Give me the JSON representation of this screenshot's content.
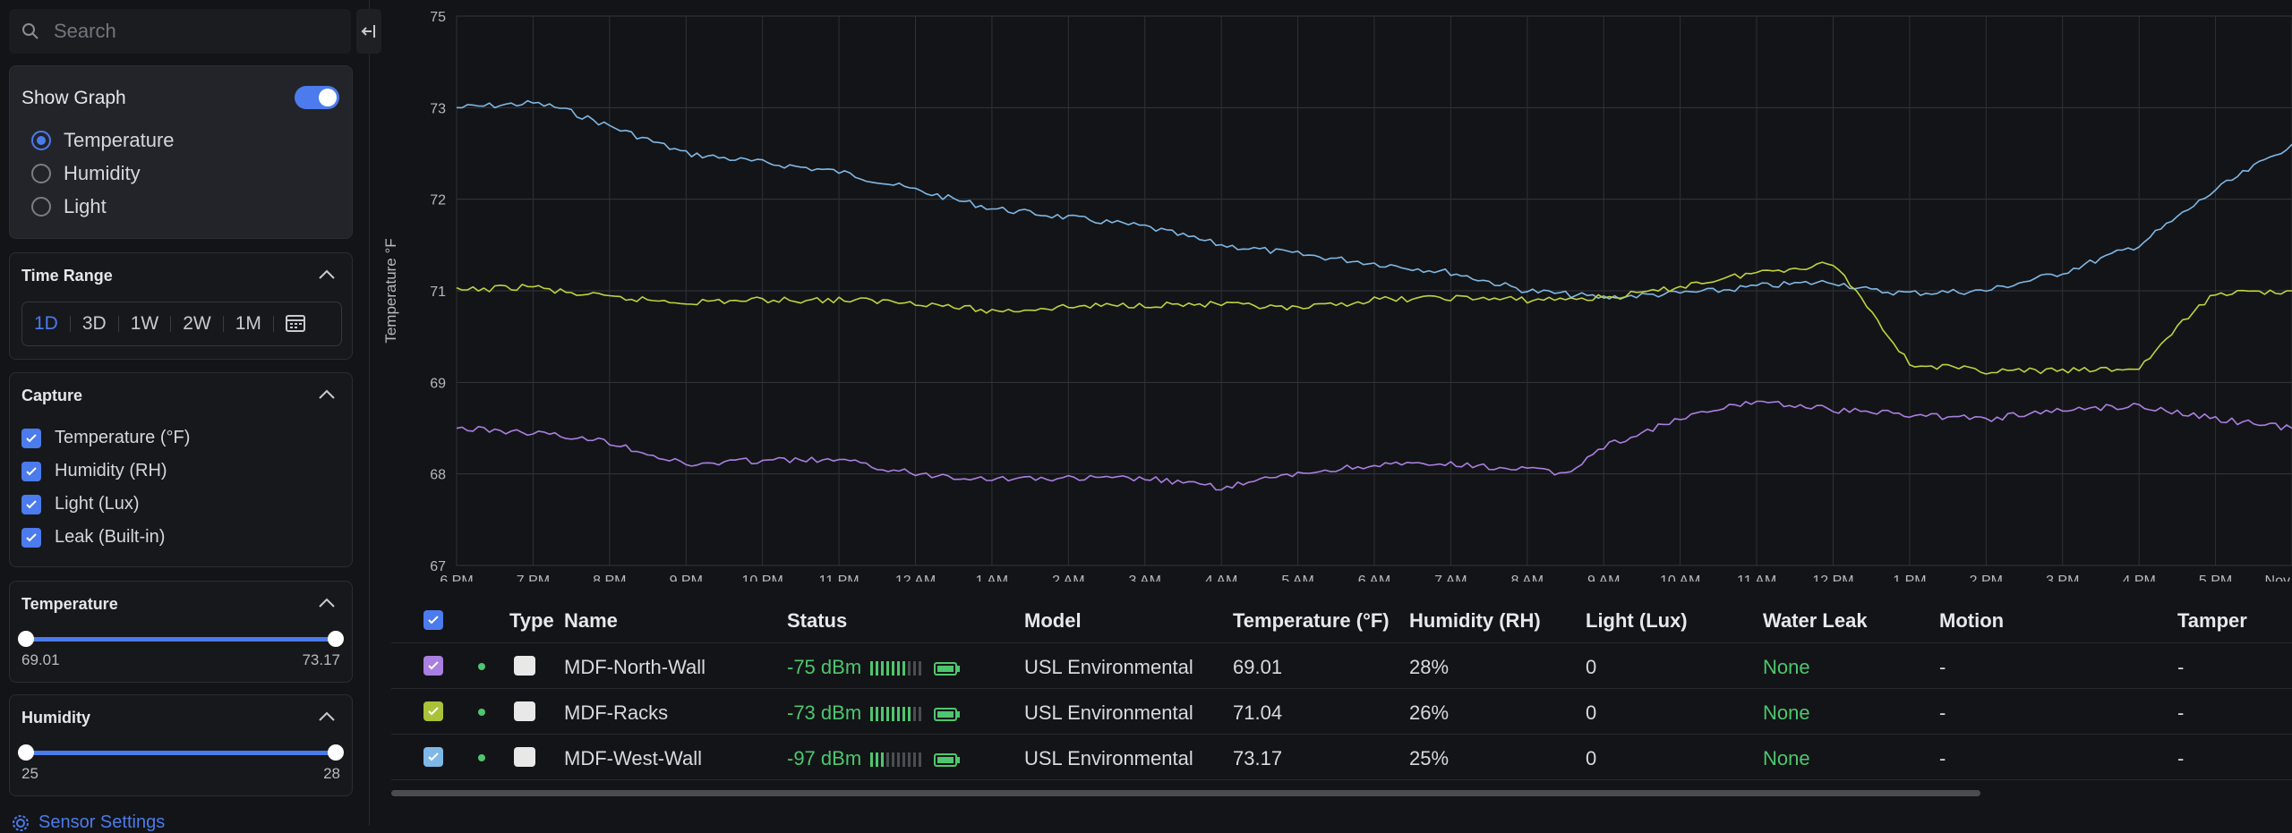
{
  "sidebar": {
    "search_placeholder": "Search",
    "show_graph": {
      "label": "Show Graph",
      "enabled": true
    },
    "graph_options": [
      {
        "label": "Temperature",
        "selected": true
      },
      {
        "label": "Humidity",
        "selected": false
      },
      {
        "label": "Light",
        "selected": false
      }
    ],
    "time_range": {
      "title": "Time Range",
      "options": [
        "1D",
        "3D",
        "1W",
        "2W",
        "1M"
      ],
      "selected": "1D"
    },
    "capture": {
      "title": "Capture",
      "items": [
        {
          "label": "Temperature (°F)",
          "checked": true
        },
        {
          "label": "Humidity (RH)",
          "checked": true
        },
        {
          "label": "Light (Lux)",
          "checked": true
        },
        {
          "label": "Leak (Built-in)",
          "checked": true
        }
      ]
    },
    "temperature_filter": {
      "title": "Temperature",
      "min": "69.01",
      "max": "73.17"
    },
    "humidity_filter": {
      "title": "Humidity",
      "min": "25",
      "max": "28"
    },
    "settings_link": "Sensor Settings"
  },
  "chart_data": {
    "type": "line",
    "ylabel": "Temperature °F",
    "y_ticks": [
      "67",
      "68",
      "69",
      "71",
      "72",
      "73",
      "75"
    ],
    "x_ticks": [
      "6 PM",
      "7 PM",
      "8 PM",
      "9 PM",
      "10 PM",
      "11 PM",
      "12 AM",
      "1 AM",
      "2 AM",
      "3 AM",
      "4 AM",
      "5 AM",
      "6 AM",
      "7 AM",
      "8 AM",
      "9 AM",
      "10 AM",
      "11 AM",
      "12 PM",
      "1 PM",
      "2 PM",
      "3 PM",
      "4 PM",
      "5 PM",
      "Nov"
    ],
    "grid": true,
    "series": [
      {
        "color": "#7fb8e6",
        "points": [
          [
            0,
            73.0
          ],
          [
            1,
            73.1
          ],
          [
            2,
            72.8
          ],
          [
            3,
            72.5
          ],
          [
            4,
            72.4
          ],
          [
            5,
            72.3
          ],
          [
            6,
            72.1
          ],
          [
            7,
            71.9
          ],
          [
            8,
            71.8
          ],
          [
            9,
            71.7
          ],
          [
            10,
            71.5
          ],
          [
            11,
            71.4
          ],
          [
            12,
            71.3
          ],
          [
            13,
            71.2
          ],
          [
            14,
            71.0
          ],
          [
            15,
            70.85
          ],
          [
            16,
            70.95
          ],
          [
            17,
            71.05
          ],
          [
            18,
            71.1
          ],
          [
            18.5,
            71.0
          ],
          [
            19,
            70.95
          ],
          [
            20,
            71.0
          ],
          [
            21,
            71.2
          ],
          [
            22,
            71.5
          ],
          [
            23,
            72.1
          ],
          [
            24,
            72.6
          ]
        ]
      },
      {
        "color": "#bfd23f",
        "points": [
          [
            0,
            71.0
          ],
          [
            1,
            71.05
          ],
          [
            2,
            70.85
          ],
          [
            3,
            70.75
          ],
          [
            4,
            70.8
          ],
          [
            5,
            70.8
          ],
          [
            6,
            70.75
          ],
          [
            7,
            70.55
          ],
          [
            8,
            70.65
          ],
          [
            9,
            70.7
          ],
          [
            10,
            70.7
          ],
          [
            11,
            70.6
          ],
          [
            12,
            70.8
          ],
          [
            13,
            70.85
          ],
          [
            14,
            70.8
          ],
          [
            15,
            70.85
          ],
          [
            16,
            71.05
          ],
          [
            17,
            71.2
          ],
          [
            18,
            71.3
          ],
          [
            18.3,
            71.0
          ],
          [
            19,
            69.4
          ],
          [
            20,
            69.25
          ],
          [
            21,
            69.25
          ],
          [
            22,
            69.3
          ],
          [
            22.5,
            70.2
          ],
          [
            23,
            70.95
          ],
          [
            24,
            71.0
          ]
        ]
      },
      {
        "color": "#a97fe0",
        "points": [
          [
            0,
            68.5
          ],
          [
            1,
            68.45
          ],
          [
            2,
            68.35
          ],
          [
            3,
            68.1
          ],
          [
            4,
            68.15
          ],
          [
            5,
            68.15
          ],
          [
            6,
            68.0
          ],
          [
            7,
            67.95
          ],
          [
            8,
            67.95
          ],
          [
            9,
            67.95
          ],
          [
            10,
            67.85
          ],
          [
            11,
            68.0
          ],
          [
            12,
            68.1
          ],
          [
            13,
            68.1
          ],
          [
            14,
            68.05
          ],
          [
            14.5,
            68.0
          ],
          [
            15,
            68.3
          ],
          [
            16,
            68.6
          ],
          [
            17,
            68.8
          ],
          [
            18,
            68.7
          ],
          [
            19,
            68.65
          ],
          [
            20,
            68.6
          ],
          [
            21,
            68.7
          ],
          [
            22,
            68.75
          ],
          [
            23,
            68.6
          ],
          [
            24,
            68.5
          ]
        ]
      }
    ]
  },
  "table": {
    "columns": [
      "Type",
      "Name",
      "Status",
      "Model",
      "Temperature (°F)",
      "Humidity (RH)",
      "Light (Lux)",
      "Water Leak",
      "Motion",
      "Tamper"
    ],
    "rows": [
      {
        "checkbox_color": "#a97fe0",
        "name": "MDF-North-Wall",
        "status": "-75 dBm",
        "signal_bars": 7,
        "model": "USL Environmental",
        "temperature": "69.01",
        "humidity": "28%",
        "light": "0",
        "water_leak": "None",
        "motion": "-",
        "tamper": "-"
      },
      {
        "checkbox_color": "#a9c23a",
        "checkbox_color_note": "",
        "name": "MDF-Racks",
        "status": "-73 dBm",
        "signal_bars": 8,
        "model": "USL Environmental",
        "temperature": "71.04",
        "humidity": "26%",
        "light": "0",
        "water_leak": "None",
        "motion": "-",
        "tamper": "-"
      },
      {
        "checkbox_color": "#7fb8e6",
        "name": "MDF-West-Wall",
        "status": "-97 dBm",
        "signal_bars": 3,
        "model": "USL Environmental",
        "temperature": "73.17",
        "humidity": "25%",
        "light": "0",
        "water_leak": "None",
        "motion": "-",
        "tamper": "-"
      }
    ]
  },
  "colors": {
    "accent": "#4b7bec",
    "ok": "#4ec66e"
  }
}
